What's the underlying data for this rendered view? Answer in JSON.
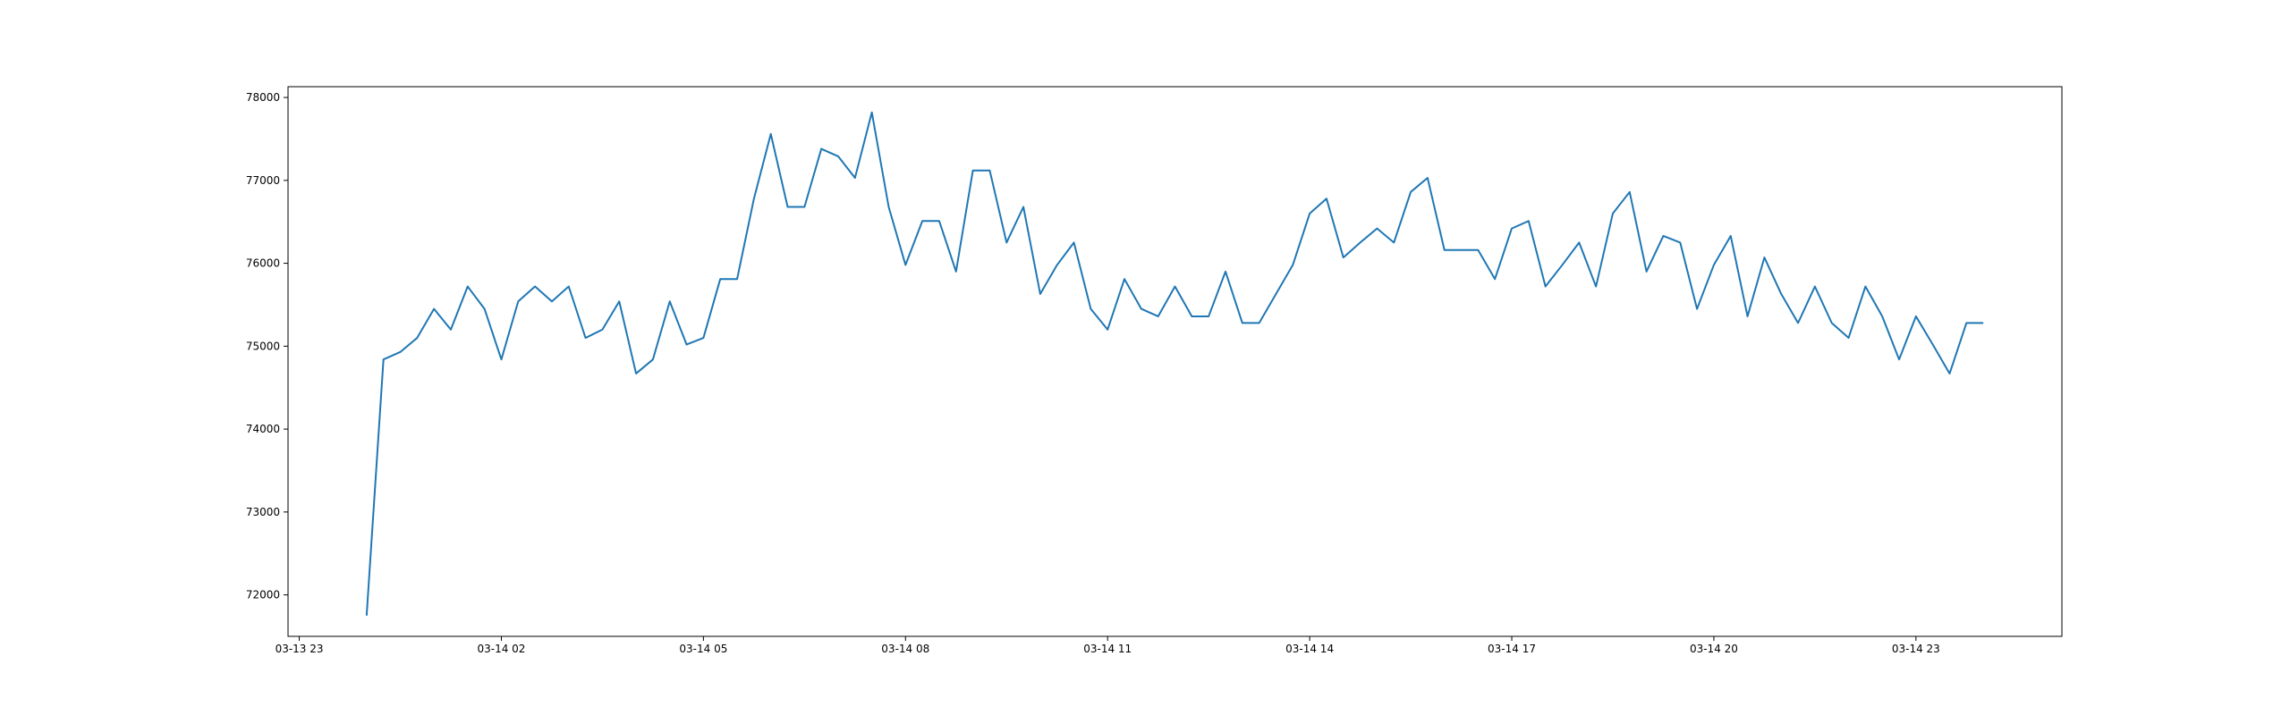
{
  "chart_data": {
    "type": "line",
    "title": "",
    "xlabel": "",
    "ylabel": "",
    "x_tick_labels": [
      "03-13 23",
      "03-14 02",
      "03-14 05",
      "03-14 08",
      "03-14 11",
      "03-14 14",
      "03-14 17",
      "03-14 20",
      "03-14 23"
    ],
    "y_ticks": [
      72000,
      73000,
      74000,
      75000,
      76000,
      77000,
      78000
    ],
    "xlim": [
      "2024-03-13 22:50",
      "2025-03-15 00:55"
    ],
    "ylim": [
      71500,
      78130
    ],
    "grid": false,
    "legend": "none",
    "line_color": "#1f77b4",
    "series": [
      {
        "x": [
          "2024-03-14 00:00",
          "2024-03-14 00:15",
          "2024-03-14 00:30",
          "2024-03-14 00:45",
          "2024-03-14 01:00",
          "2024-03-14 01:15",
          "2024-03-14 01:30",
          "2024-03-14 01:45",
          "2024-03-14 02:00",
          "2024-03-14 02:15",
          "2024-03-14 02:30",
          "2024-03-14 02:45",
          "2024-03-14 03:00",
          "2024-03-14 03:15",
          "2024-03-14 03:30",
          "2024-03-14 03:45",
          "2024-03-14 04:00",
          "2024-03-14 04:15",
          "2024-03-14 04:30",
          "2024-03-14 04:45",
          "2024-03-14 05:00",
          "2024-03-14 05:15",
          "2024-03-14 05:30",
          "2024-03-14 05:45",
          "2024-03-14 06:00",
          "2024-03-14 06:15",
          "2024-03-14 06:30",
          "2024-03-14 06:45",
          "2024-03-14 07:00",
          "2024-03-14 07:15",
          "2024-03-14 07:30",
          "2024-03-14 07:45",
          "2024-03-14 08:00",
          "2024-03-14 08:15",
          "2024-03-14 08:30",
          "2024-03-14 08:45",
          "2024-03-14 09:00",
          "2024-03-14 09:15",
          "2024-03-14 09:30",
          "2024-03-14 09:45",
          "2024-03-14 10:00",
          "2024-03-14 10:15",
          "2024-03-14 10:30",
          "2024-03-14 10:45",
          "2024-03-14 11:00",
          "2024-03-14 11:15",
          "2024-03-14 11:30",
          "2024-03-14 11:45",
          "2024-03-14 12:00",
          "2024-03-14 12:15",
          "2024-03-14 12:30",
          "2024-03-14 12:45",
          "2024-03-14 13:00",
          "2024-03-14 13:15",
          "2024-03-14 13:30",
          "2024-03-14 13:45",
          "2024-03-14 14:00",
          "2024-03-14 14:15",
          "2024-03-14 14:30",
          "2024-03-14 14:45",
          "2024-03-14 15:00",
          "2024-03-14 15:15",
          "2024-03-14 15:30",
          "2024-03-14 15:45",
          "2024-03-14 16:00",
          "2024-03-14 16:15",
          "2024-03-14 16:30",
          "2024-03-14 16:45",
          "2024-03-14 17:00",
          "2024-03-14 17:15",
          "2024-03-14 17:30",
          "2024-03-14 17:45",
          "2024-03-14 18:00",
          "2024-03-14 18:15",
          "2024-03-14 18:30",
          "2024-03-14 18:45",
          "2024-03-14 19:00",
          "2024-03-14 19:15",
          "2024-03-14 19:30",
          "2024-03-14 19:45",
          "2024-03-14 20:00",
          "2024-03-14 20:15",
          "2024-03-14 20:30",
          "2024-03-14 20:45",
          "2024-03-14 21:00",
          "2024-03-14 21:15",
          "2024-03-14 21:30",
          "2024-03-14 21:45",
          "2024-03-14 22:00",
          "2024-03-14 22:15",
          "2024-03-14 22:30",
          "2024-03-14 22:45",
          "2024-03-14 23:00",
          "2024-03-14 23:15",
          "2024-03-14 23:30",
          "2024-03-14 23:45",
          "2024-03-15 00:00"
        ],
        "values": [
          71750,
          74840,
          74930,
          75100,
          75450,
          75200,
          75720,
          75450,
          74840,
          75540,
          75720,
          75540,
          75720,
          75100,
          75200,
          75540,
          74670,
          74840,
          75540,
          75020,
          75100,
          75810,
          75810,
          76780,
          77560,
          76680,
          76680,
          77380,
          77290,
          77030,
          77820,
          76680,
          75980,
          76510,
          76510,
          75900,
          77120,
          77120,
          76250,
          76680,
          75630,
          75980,
          76250,
          75450,
          75200,
          75810,
          75450,
          75360,
          75720,
          75360,
          75360,
          75900,
          75280,
          75280,
          75630,
          75980,
          76600,
          76780,
          76070,
          76250,
          76420,
          76250,
          76860,
          77030,
          76160,
          76160,
          76160,
          75810,
          76420,
          76510,
          75720,
          75980,
          76250,
          75720,
          76600,
          76860,
          75900,
          76330,
          76250,
          75450,
          75980,
          76330,
          75360,
          76070,
          75630,
          75280,
          75720,
          75280,
          75100,
          75720,
          75360,
          74840,
          75360,
          75020,
          74670,
          75280,
          75280
        ]
      }
    ]
  }
}
